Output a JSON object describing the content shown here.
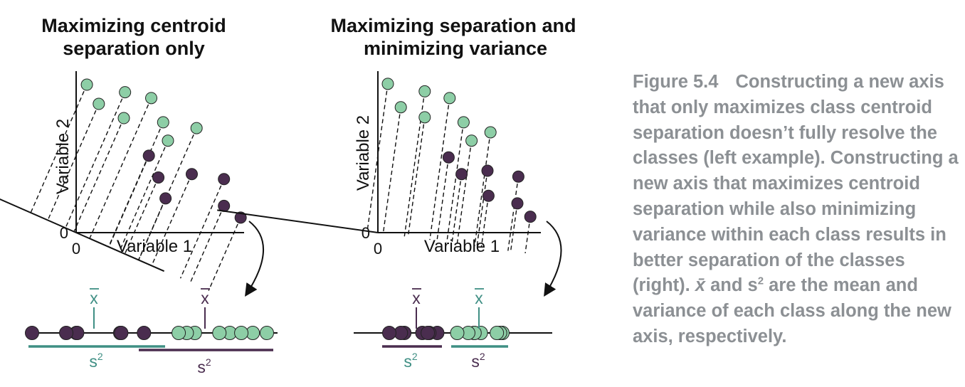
{
  "colors": {
    "green_fill": "#8dcea6",
    "green_line": "#3f8f84",
    "purple_fill": "#4a2d4f",
    "purple_line": "#4a2d4f",
    "axis": "#111111",
    "caption": "#8c9094"
  },
  "left_panel": {
    "title_line1": "Maximizing centroid",
    "title_line2": "separation only",
    "x_axis_label": "Variable 1",
    "y_axis_label": "Variable 2",
    "x_origin": "0",
    "y_origin": "0",
    "class_a_points": [
      [
        0.45,
        8.85
      ],
      [
        0.95,
        7.7
      ],
      [
        2.05,
        8.4
      ],
      [
        3.15,
        8.05
      ],
      [
        2.0,
        6.85
      ],
      [
        3.65,
        6.6
      ],
      [
        5.05,
        6.25
      ],
      [
        3.85,
        5.5
      ]
    ],
    "class_b_points": [
      [
        3.05,
        4.6
      ],
      [
        3.45,
        3.3
      ],
      [
        4.85,
        3.5
      ],
      [
        3.75,
        2.05
      ],
      [
        6.2,
        3.2
      ],
      [
        6.2,
        1.6
      ],
      [
        6.9,
        0.9
      ]
    ],
    "projection_line_direction": [
      -1.6,
      1.0
    ],
    "green_mean_label": "x",
    "purple_mean_label": "x",
    "green_variance_label": "s",
    "purple_variance_label": "s",
    "variance_exponent": "2"
  },
  "right_panel": {
    "title_line1": "Maximizing separation and",
    "title_line2": "minimizing variance",
    "x_axis_label": "Variable 1",
    "y_axis_label": "Variable 2",
    "x_origin": "0",
    "y_origin": "0",
    "class_a_points": [
      [
        0.5,
        8.9
      ],
      [
        1.15,
        7.5
      ],
      [
        2.35,
        8.45
      ],
      [
        3.6,
        8.05
      ],
      [
        2.35,
        6.9
      ],
      [
        4.3,
        6.6
      ],
      [
        5.65,
        6.0
      ],
      [
        4.7,
        5.5
      ]
    ],
    "class_b_points": [
      [
        3.55,
        4.5
      ],
      [
        4.2,
        3.5
      ],
      [
        5.5,
        3.7
      ],
      [
        7.05,
        3.35
      ],
      [
        5.55,
        2.2
      ],
      [
        7.0,
        1.75
      ],
      [
        7.65,
        0.95
      ]
    ],
    "projection_line_direction": [
      -6.0,
      1.0
    ],
    "purple_mean_label": "x",
    "green_mean_label": "x",
    "purple_variance_label": "s",
    "green_variance_label": "s",
    "variance_exponent": "2"
  },
  "caption": {
    "figure_number": "Figure 5.4",
    "text_before_symbol": "Constructing a new axis that only maximizes class centroid separation doesn’t fully resolve the classes (left example). Constructing a new axis that maximizes centroid separation while also minimizing variance within each class results in better separation of the classes (right).",
    "mean_symbol": "x̄",
    "and_word": "and",
    "variance_symbol": "s",
    "variance_exponent": "2",
    "text_after_symbol": "are the mean and variance of each class along the new axis, respectively."
  }
}
